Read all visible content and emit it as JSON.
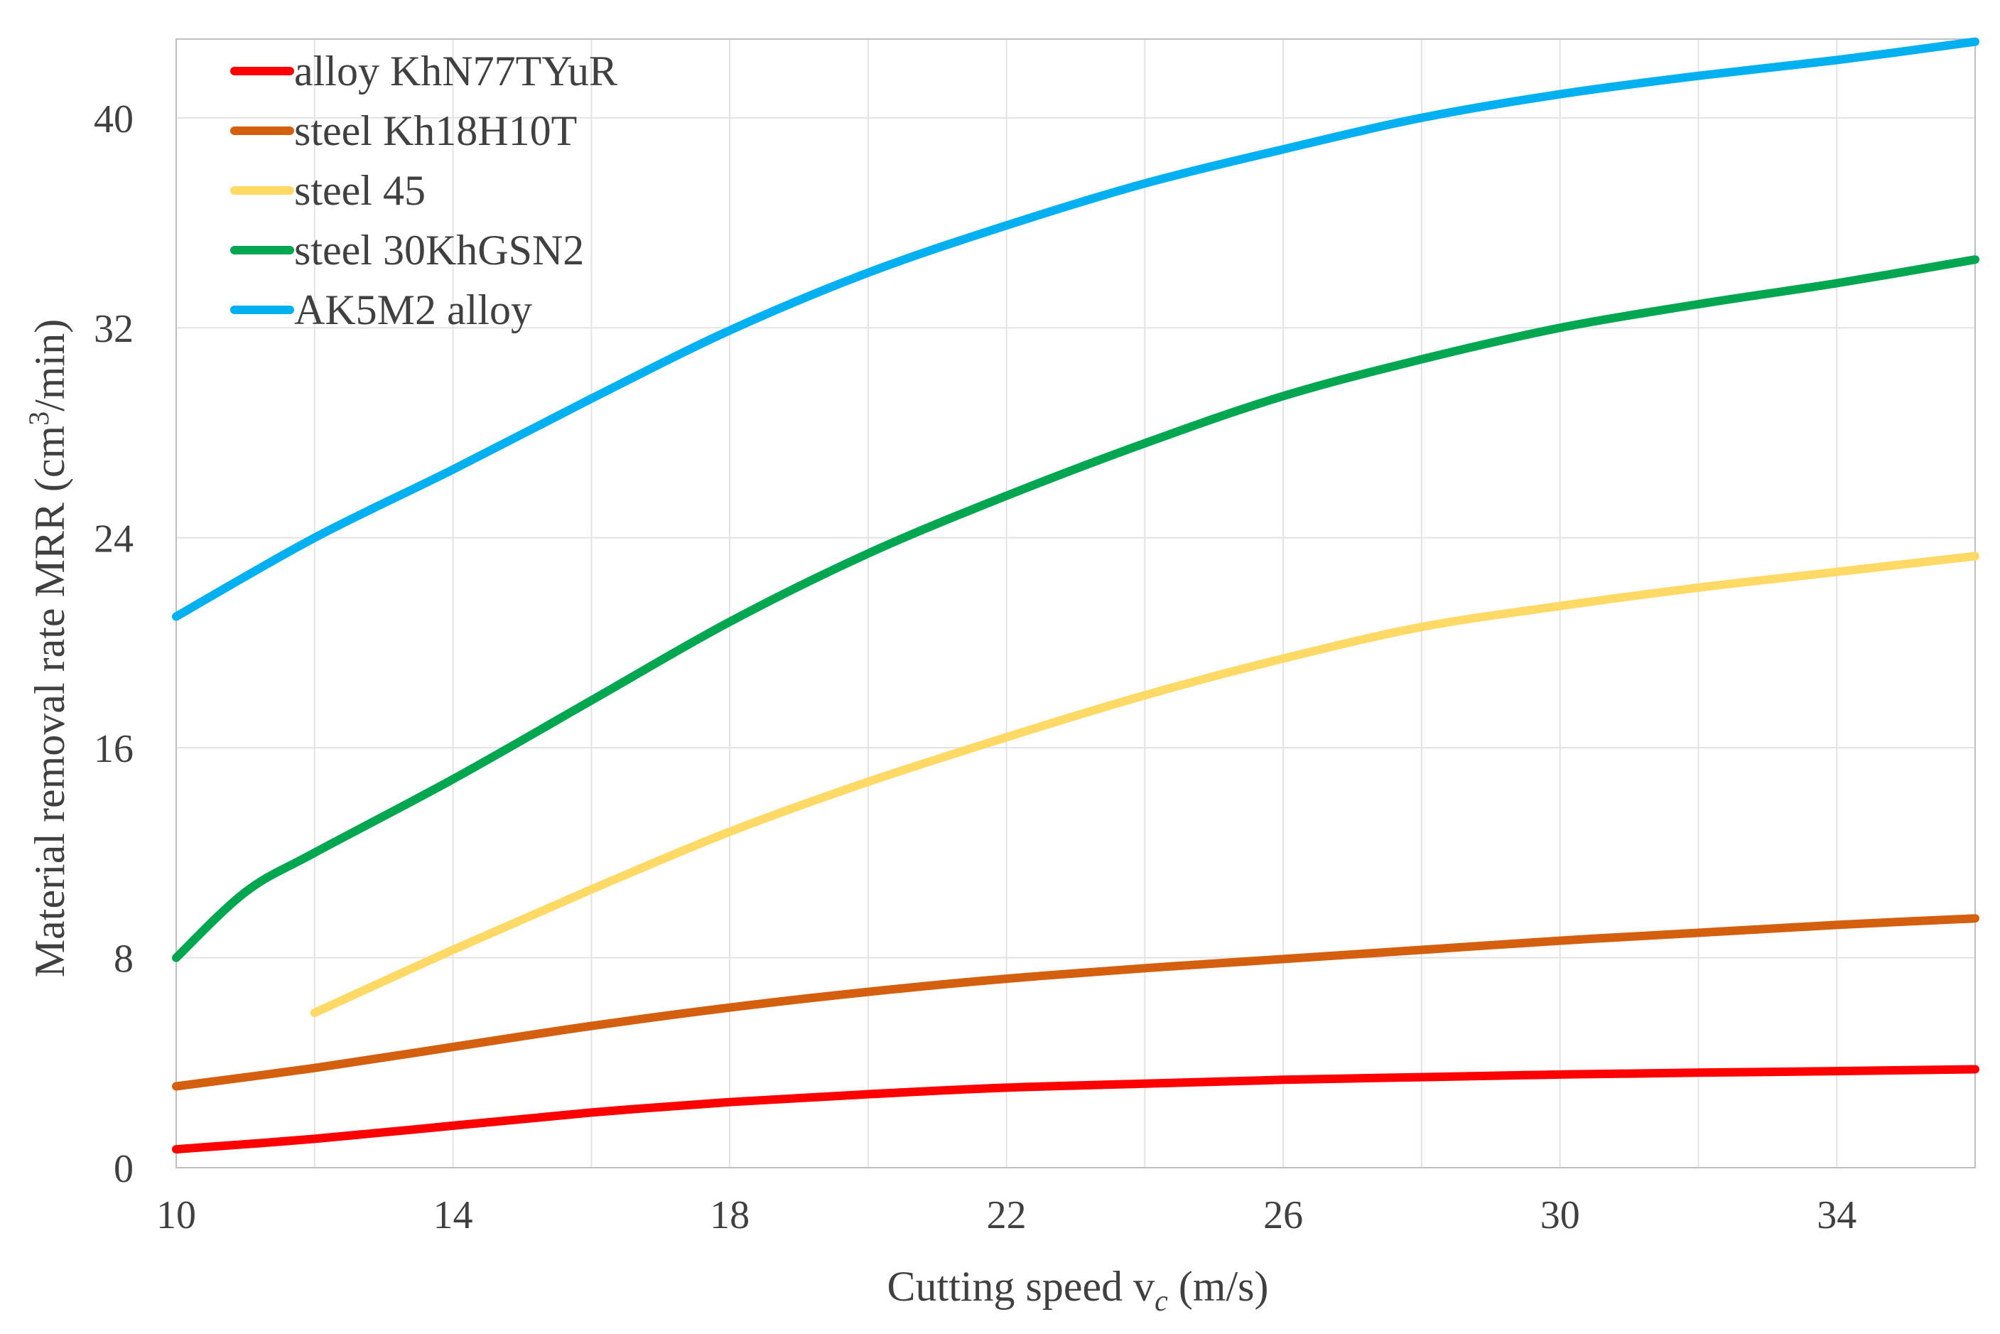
{
  "chart_data": {
    "type": "line",
    "title": "",
    "xlabel": "Cutting speed v",
    "xlabel_sub": "c",
    "xlabel_unit": " (m/s)",
    "ylabel": "Material removal rate MRR (cm",
    "ylabel_sup": "3",
    "ylabel_unit": "/min)",
    "xlim": [
      10,
      36
    ],
    "ylim": [
      0,
      43
    ],
    "xticks": [
      10,
      14,
      18,
      22,
      26,
      30,
      34
    ],
    "yticks": [
      0,
      8,
      16,
      24,
      32,
      40
    ],
    "xgrid": [
      10,
      12,
      14,
      16,
      18,
      20,
      22,
      24,
      26,
      28,
      30,
      32,
      34,
      36
    ],
    "grid": true,
    "legend_position": "top-left",
    "series": [
      {
        "name": "alloy KhN77TYuR",
        "color": "#ff0000",
        "x": [
          10,
          12,
          14,
          16,
          18,
          20,
          22,
          24,
          26,
          28,
          30,
          32,
          34,
          36
        ],
        "y": [
          0.7,
          1.1,
          1.6,
          2.1,
          2.5,
          2.8,
          3.05,
          3.2,
          3.35,
          3.45,
          3.55,
          3.62,
          3.68,
          3.75
        ]
      },
      {
        "name": "steel Kh18H10T",
        "color": "#d35f0f",
        "x": [
          10,
          12,
          14,
          16,
          18,
          20,
          22,
          24,
          26,
          28,
          30,
          32,
          34,
          36
        ],
        "y": [
          3.1,
          3.8,
          4.6,
          5.4,
          6.1,
          6.7,
          7.2,
          7.6,
          7.95,
          8.3,
          8.65,
          8.95,
          9.25,
          9.5
        ]
      },
      {
        "name": "steel 45",
        "color": "#ffd966",
        "x": [
          12,
          14,
          16,
          18,
          20,
          22,
          24,
          26,
          28,
          30,
          32,
          34,
          36
        ],
        "y": [
          5.9,
          8.3,
          10.6,
          12.8,
          14.7,
          16.4,
          18.0,
          19.4,
          20.6,
          21.4,
          22.1,
          22.7,
          23.3
        ]
      },
      {
        "name": "steel 30KhGSN2",
        "color": "#00a650",
        "x": [
          10,
          11,
          12,
          14,
          16,
          18,
          20,
          22,
          24,
          26,
          28,
          30,
          32,
          34,
          36
        ],
        "y": [
          8.0,
          10.5,
          12.0,
          14.8,
          17.8,
          20.8,
          23.4,
          25.6,
          27.6,
          29.4,
          30.8,
          32.0,
          32.9,
          33.7,
          34.6
        ]
      },
      {
        "name": "AK5M2 alloy",
        "color": "#00b0f0",
        "x": [
          10,
          12,
          14,
          16,
          18,
          20,
          22,
          24,
          26,
          28,
          30,
          32,
          34,
          36
        ],
        "y": [
          21.0,
          24.0,
          26.6,
          29.3,
          31.9,
          34.1,
          35.9,
          37.5,
          38.8,
          40.0,
          40.9,
          41.6,
          42.2,
          42.9
        ]
      }
    ]
  }
}
